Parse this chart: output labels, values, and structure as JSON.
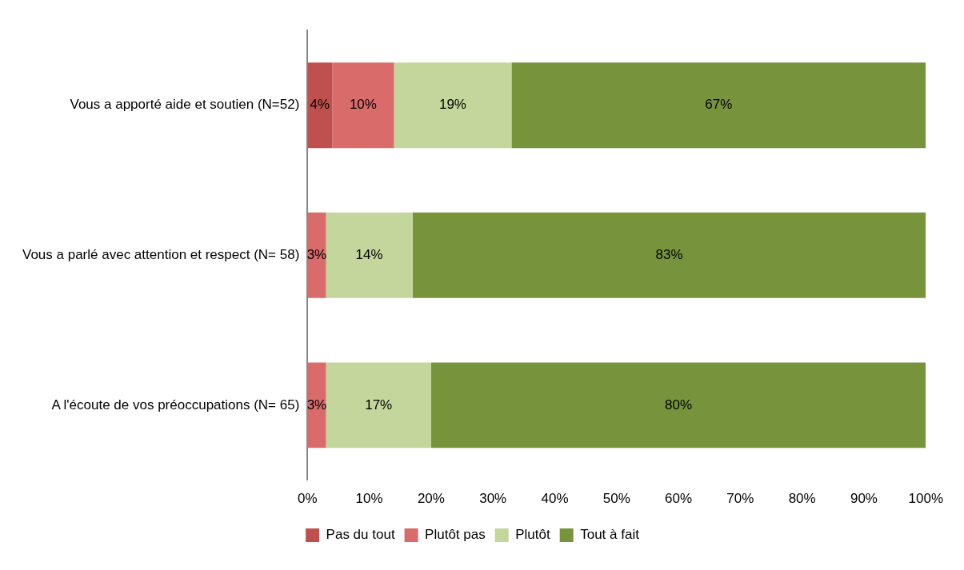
{
  "chart_data": {
    "type": "bar",
    "orientation": "horizontal",
    "stacked": true,
    "categories": [
      "Vous a apporté aide et soutien (N=52)",
      "Vous a parlé avec attention et respect (N= 58)",
      "A l'écoute de vos préoccupations (N= 65)"
    ],
    "series": [
      {
        "name": "Pas du tout",
        "color": "#c0504d",
        "values": [
          4,
          null,
          null
        ],
        "value_labels": [
          "4%",
          null,
          null
        ]
      },
      {
        "name": "Plutôt pas",
        "color": "#d96b6b",
        "values": [
          10,
          3,
          3
        ],
        "value_labels": [
          "10%",
          "3%",
          "3%"
        ]
      },
      {
        "name": "Plutôt",
        "color": "#c3d69b",
        "values": [
          19,
          14,
          17
        ],
        "value_labels": [
          "19%",
          "14%",
          "17%"
        ]
      },
      {
        "name": "Tout à fait",
        "color": "#77933c",
        "values": [
          67,
          83,
          80
        ],
        "value_labels": [
          "67%",
          "83%",
          "80%"
        ]
      }
    ],
    "xlim": [
      0,
      100
    ],
    "xticks": [
      {
        "value": 0,
        "label": "0%"
      },
      {
        "value": 10,
        "label": "10%"
      },
      {
        "value": 20,
        "label": "20%"
      },
      {
        "value": 30,
        "label": "30%"
      },
      {
        "value": 40,
        "label": "40%"
      },
      {
        "value": 50,
        "label": "50%"
      },
      {
        "value": 60,
        "label": "60%"
      },
      {
        "value": 70,
        "label": "70%"
      },
      {
        "value": 80,
        "label": "80%"
      },
      {
        "value": 90,
        "label": "90%"
      },
      {
        "value": 100,
        "label": "100%"
      }
    ],
    "grid": false,
    "legend": "bottom"
  }
}
